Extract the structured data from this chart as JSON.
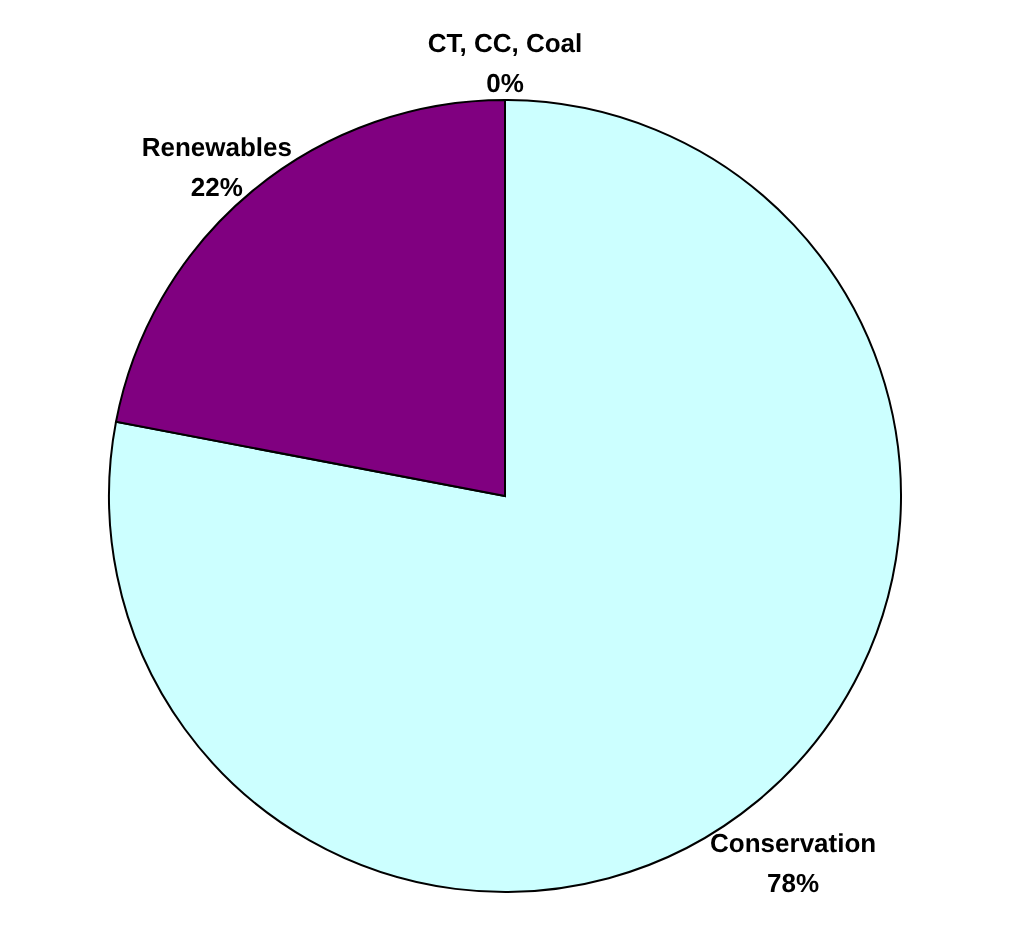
{
  "chart_data": {
    "type": "pie",
    "categories": [
      "Conservation",
      "Renewables",
      "CT, CC, Coal"
    ],
    "values": [
      78,
      22,
      0
    ],
    "colors": [
      "#ccffff",
      "#800080",
      "#9999ff"
    ],
    "value_labels": [
      "78%",
      "22%",
      "0%"
    ]
  }
}
